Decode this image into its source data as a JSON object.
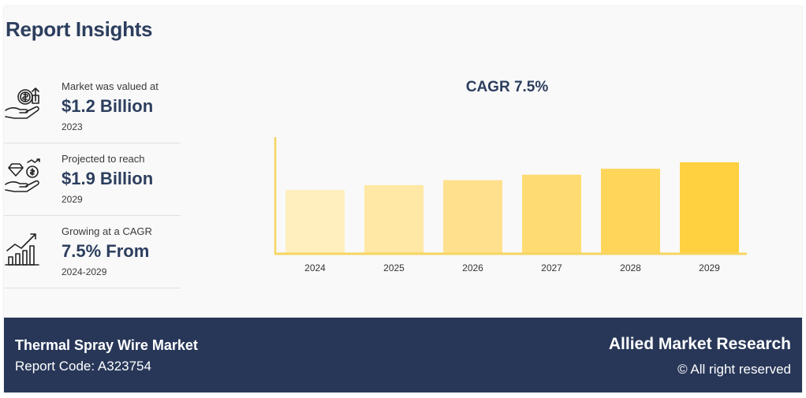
{
  "header": {
    "title": "Report Insights"
  },
  "stats": [
    {
      "label": "Market was valued at",
      "value": "$1.2 Billion",
      "sub": "2023",
      "icon": "money-hand-icon"
    },
    {
      "label": "Projected to reach",
      "value": "$1.9 Billion",
      "sub": "2029",
      "icon": "diamond-coin-hand-icon"
    },
    {
      "label": "Growing at a CAGR",
      "value": "7.5% From",
      "sub": "2024-2029",
      "icon": "growth-chart-icon"
    }
  ],
  "chart_data": {
    "type": "bar",
    "title": "CAGR 7.5%",
    "xlabel": "",
    "ylabel": "",
    "categories": [
      "2024",
      "2025",
      "2026",
      "2027",
      "2028",
      "2029"
    ],
    "values": [
      1.29,
      1.39,
      1.49,
      1.6,
      1.72,
      1.85
    ],
    "ylim": [
      0,
      2.2
    ],
    "grid": false,
    "colors": [
      "#ffefbe",
      "#ffe8a6",
      "#ffe18d",
      "#ffdb74",
      "#ffd55a",
      "#ffd03f"
    ],
    "axis_color": "#f5d560"
  },
  "footer": {
    "market": "Thermal Spray Wire Market",
    "report_code": "Report Code: A323754",
    "brand": "Allied Market Research",
    "rights": "© All right reserved"
  }
}
